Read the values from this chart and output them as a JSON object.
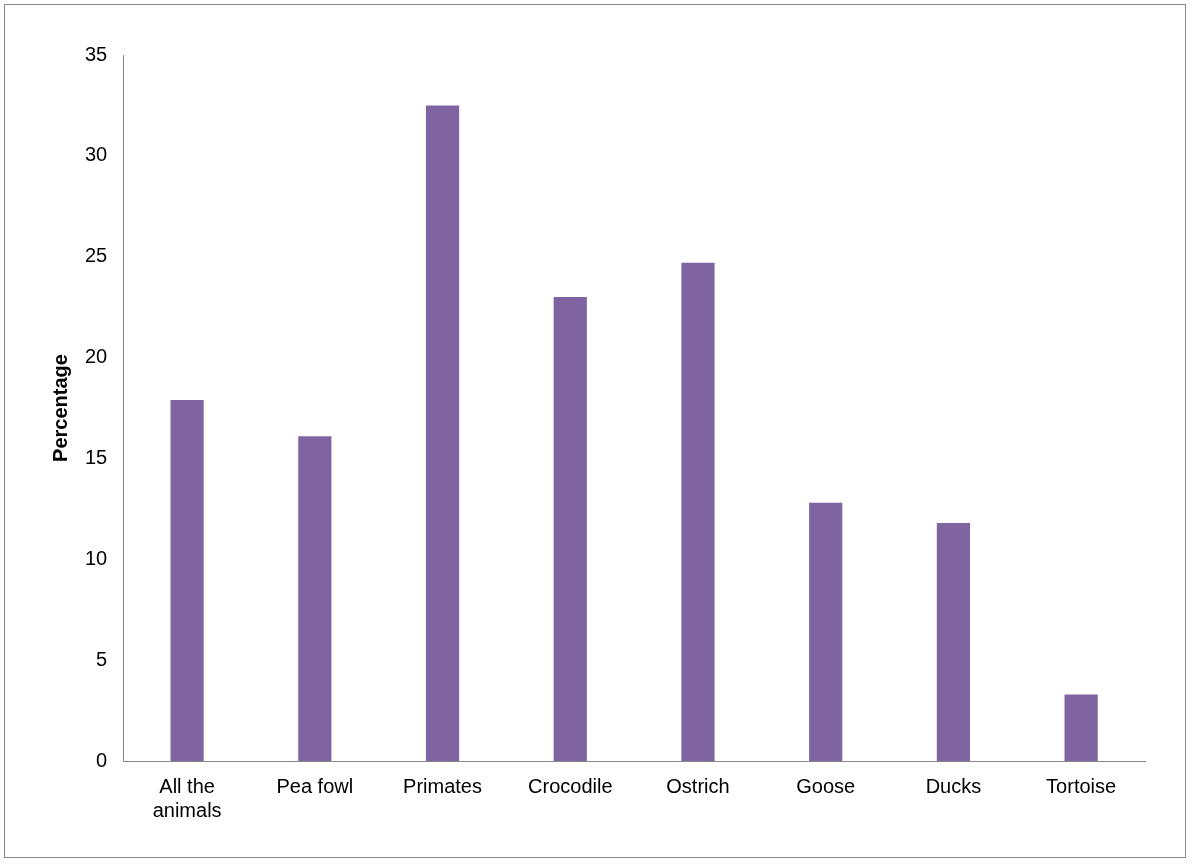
{
  "chart_data": {
    "type": "bar",
    "ylabel": "Percentage",
    "categories": [
      "All the animals",
      "Pea fowl",
      "Primates",
      "Crocodile",
      "Ostrich",
      "Goose",
      "Ducks",
      "Tortoise"
    ],
    "values": [
      17.9,
      16.1,
      32.5,
      23.0,
      24.7,
      12.8,
      11.8,
      3.3
    ],
    "color": "#8064a2",
    "ylim": [
      0,
      35
    ],
    "yticks": [
      0,
      5,
      10,
      15,
      20,
      25,
      30,
      35
    ],
    "grid": false,
    "legend": false
  }
}
